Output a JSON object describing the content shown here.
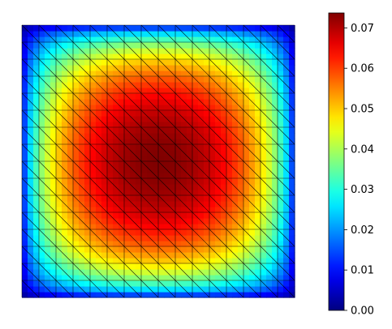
{
  "chart_data": {
    "type": "heatmap",
    "title": "",
    "xlabel": "",
    "ylabel": "",
    "colormap": "jet",
    "mesh": "triangulated",
    "grid_divisions": 16,
    "x_range": [
      0,
      1
    ],
    "y_range": [
      0,
      1
    ],
    "field": "0.0737 * (16 x y (1-x)(1-y))^0.5",
    "peak_value": 0.0737,
    "colorbar": {
      "range": [
        0.0,
        0.0737
      ],
      "ticks": [
        0.0,
        0.01,
        0.02,
        0.03,
        0.04,
        0.05,
        0.06,
        0.07
      ],
      "tick_labels": [
        "0.00",
        "0.01",
        "0.02",
        "0.03",
        "0.04",
        "0.05",
        "0.06",
        "0.07"
      ]
    }
  }
}
